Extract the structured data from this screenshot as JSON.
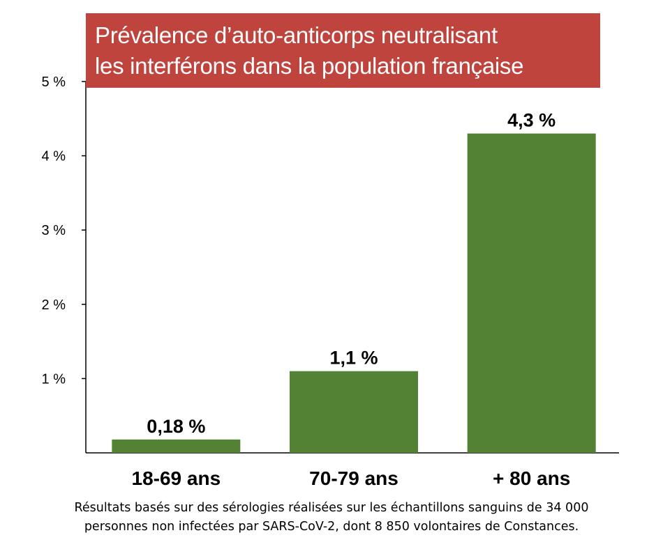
{
  "chart_data": {
    "type": "bar",
    "title_lines": [
      "Prévalence d’auto-anticorps neutralisant",
      "les interférons dans la population française"
    ],
    "categories": [
      "18-69 ans",
      "70-79 ans",
      "+ 80 ans"
    ],
    "values": [
      0.18,
      1.1,
      4.3
    ],
    "data_labels": [
      "0,18 %",
      "1,1 %",
      "4,3 %"
    ],
    "ylim": [
      0,
      5
    ],
    "yticks": [
      {
        "value": 1,
        "label": "1 %"
      },
      {
        "value": 2,
        "label": "2 %"
      },
      {
        "value": 3,
        "label": "3 %"
      },
      {
        "value": 4,
        "label": "4 %"
      },
      {
        "value": 5,
        "label": "5 %"
      }
    ],
    "grid": false,
    "colors": {
      "bar": "#548235",
      "title_background": "#c0443e",
      "title_text": "#ffffff"
    }
  },
  "footnote_lines": [
    "Résultats basés sur des sérologies réalisées sur les échantillons sanguins de 34 000",
    "personnes non infectées par SARS-CoV-2, dont 8 850 volontaires de Constances."
  ]
}
